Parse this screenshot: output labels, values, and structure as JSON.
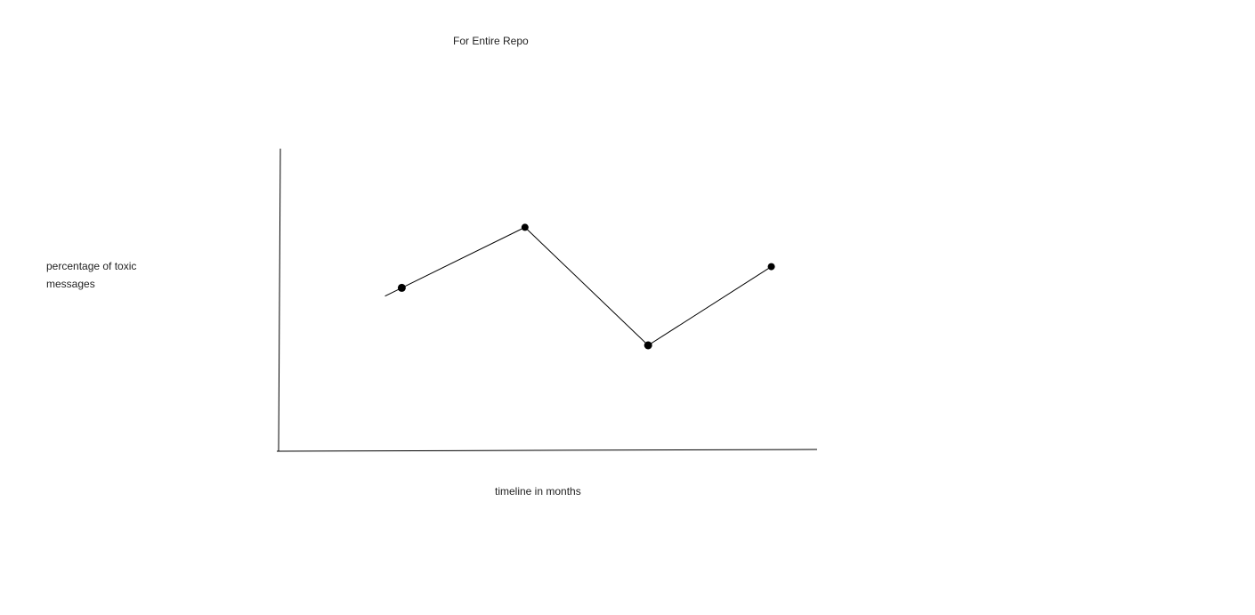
{
  "chart_data": {
    "type": "line",
    "title": "For Entire Repo",
    "xlabel": "timeline in months",
    "ylabel": "percentage of toxic messages",
    "x": [
      1,
      2,
      3,
      4
    ],
    "series": [
      {
        "values": [
          54,
          74,
          35,
          61
        ]
      }
    ],
    "xlim": [
      0,
      5
    ],
    "ylim": [
      0,
      100
    ],
    "grid": false,
    "line_color": "#000000",
    "marker_color": "#000000"
  }
}
